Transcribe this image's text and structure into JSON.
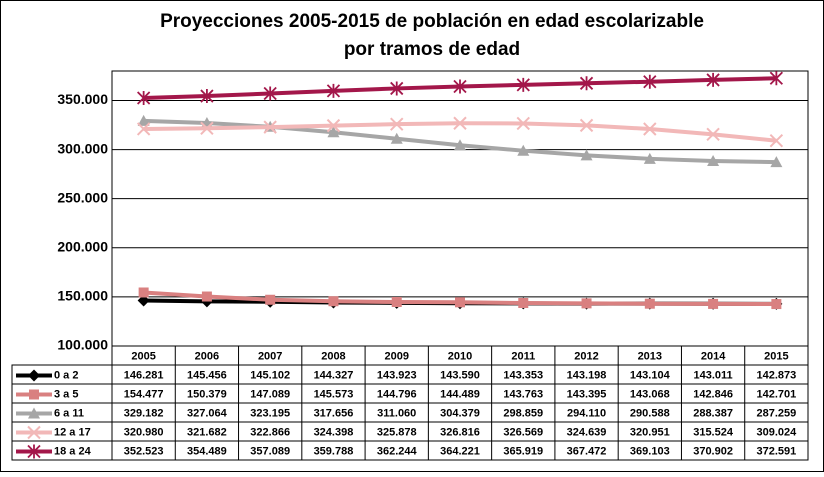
{
  "chart_data": {
    "type": "line",
    "title": [
      "Proyecciones 2005-2015 de población en edad escolarizable",
      "por tramos de edad"
    ],
    "categories": [
      "2005",
      "2006",
      "2007",
      "2008",
      "2009",
      "2010",
      "2011",
      "2012",
      "2013",
      "2014",
      "2015"
    ],
    "series": [
      {
        "name": "0 a 2",
        "color": "#000000",
        "marker": "diamond",
        "values": [
          146281,
          145456,
          145102,
          144327,
          143923,
          143590,
          143353,
          143198,
          143104,
          143011,
          142873
        ],
        "value_labels": [
          "146.281",
          "145.456",
          "145.102",
          "144.327",
          "143.923",
          "143.590",
          "143.353",
          "143.198",
          "143.104",
          "143.011",
          "142.873"
        ]
      },
      {
        "name": "3 a 5",
        "color": "#d98080",
        "marker": "square",
        "values": [
          154477,
          150379,
          147089,
          145573,
          144796,
          144489,
          143763,
          143395,
          143068,
          142846,
          142701
        ],
        "value_labels": [
          "154.477",
          "150.379",
          "147.089",
          "145.573",
          "144.796",
          "144.489",
          "143.763",
          "143.395",
          "143.068",
          "142.846",
          "142.701"
        ]
      },
      {
        "name": "6 a 11",
        "color": "#a6a6a6",
        "marker": "triangle",
        "values": [
          329182,
          327064,
          323195,
          317656,
          311060,
          304379,
          298859,
          294110,
          290588,
          288387,
          287259
        ],
        "value_labels": [
          "329.182",
          "327.064",
          "323.195",
          "317.656",
          "311.060",
          "304.379",
          "298.859",
          "294.110",
          "290.588",
          "288.387",
          "287.259"
        ]
      },
      {
        "name": "12 a 17",
        "color": "#f2b8b8",
        "marker": "x",
        "values": [
          320980,
          321682,
          322866,
          324398,
          325878,
          326816,
          326569,
          324639,
          320951,
          315524,
          309024
        ],
        "value_labels": [
          "320.980",
          "321.682",
          "322.866",
          "324.398",
          "325.878",
          "326.816",
          "326.569",
          "324.639",
          "320.951",
          "315.524",
          "309.024"
        ]
      },
      {
        "name": "18 a 24",
        "color": "#a3174a",
        "marker": "star",
        "values": [
          352523,
          354489,
          357089,
          359788,
          362244,
          364221,
          365919,
          367472,
          369103,
          370902,
          372591
        ],
        "value_labels": [
          "352.523",
          "354.489",
          "357.089",
          "359.788",
          "362.244",
          "364.221",
          "365.919",
          "367.472",
          "369.103",
          "370.902",
          "372.591"
        ]
      }
    ],
    "ylim": [
      100000,
      380000
    ],
    "yticks": [
      {
        "value": 100000,
        "label": "100.000"
      },
      {
        "value": 150000,
        "label": "150.000"
      },
      {
        "value": 200000,
        "label": "200.000"
      },
      {
        "value": 250000,
        "label": "250.000"
      },
      {
        "value": 300000,
        "label": "300.000"
      },
      {
        "value": 350000,
        "label": "350.000"
      }
    ],
    "grid": true
  }
}
